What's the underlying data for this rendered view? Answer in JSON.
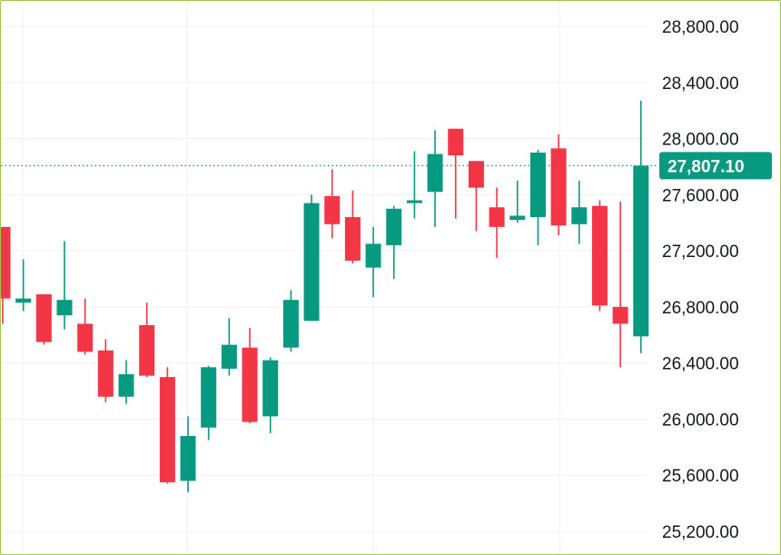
{
  "chart_data": {
    "type": "candlestick",
    "title": "",
    "xlabel": "",
    "ylabel": "",
    "ylim": [
      25050,
      29000
    ],
    "grid": true,
    "colors": {
      "up": "#089981",
      "down": "#f23645",
      "grid": "#eef0f3",
      "line": "#089981"
    },
    "yticks": [
      "28,800.00",
      "28,400.00",
      "28,000.00",
      "27,600.00",
      "27,200.00",
      "26,800.00",
      "26,400.00",
      "26,000.00",
      "25,600.00",
      "25,200.00"
    ],
    "ytick_values": [
      28800,
      28400,
      28000,
      27600,
      27200,
      26800,
      26400,
      26000,
      25600,
      25200
    ],
    "current_price": 27807.1,
    "current_price_label": "27,807.10",
    "candles": [
      {
        "open": 27370,
        "high": 27370,
        "low": 26680,
        "close": 26860
      },
      {
        "open": 26830,
        "high": 27140,
        "low": 26770,
        "close": 26860
      },
      {
        "open": 26890,
        "high": 26890,
        "low": 26530,
        "close": 26550
      },
      {
        "open": 26740,
        "high": 27270,
        "low": 26640,
        "close": 26850
      },
      {
        "open": 26680,
        "high": 26860,
        "low": 26460,
        "close": 26480
      },
      {
        "open": 26490,
        "high": 26570,
        "low": 26120,
        "close": 26160
      },
      {
        "open": 26160,
        "high": 26420,
        "low": 26110,
        "close": 26320
      },
      {
        "open": 26670,
        "high": 26830,
        "low": 26300,
        "close": 26310
      },
      {
        "open": 26300,
        "high": 26370,
        "low": 25540,
        "close": 25550
      },
      {
        "open": 25560,
        "high": 26020,
        "low": 25480,
        "close": 25880
      },
      {
        "open": 25940,
        "high": 26380,
        "low": 25850,
        "close": 26370
      },
      {
        "open": 26360,
        "high": 26720,
        "low": 26310,
        "close": 26530
      },
      {
        "open": 26510,
        "high": 26650,
        "low": 25970,
        "close": 25980
      },
      {
        "open": 26020,
        "high": 26440,
        "low": 25900,
        "close": 26420
      },
      {
        "open": 26510,
        "high": 26920,
        "low": 26480,
        "close": 26850
      },
      {
        "open": 26700,
        "high": 27600,
        "low": 26700,
        "close": 27540
      },
      {
        "open": 27590,
        "high": 27780,
        "low": 27290,
        "close": 27390
      },
      {
        "open": 27440,
        "high": 27630,
        "low": 27110,
        "close": 27130
      },
      {
        "open": 27080,
        "high": 27370,
        "low": 26870,
        "close": 27250
      },
      {
        "open": 27240,
        "high": 27520,
        "low": 27000,
        "close": 27500
      },
      {
        "open": 27540,
        "high": 27910,
        "low": 27430,
        "close": 27560
      },
      {
        "open": 27620,
        "high": 28060,
        "low": 27370,
        "close": 27890
      },
      {
        "open": 28070,
        "high": 28070,
        "low": 27430,
        "close": 27880
      },
      {
        "open": 27840,
        "high": 27840,
        "low": 27340,
        "close": 27650
      },
      {
        "open": 27510,
        "high": 27650,
        "low": 27150,
        "close": 27370
      },
      {
        "open": 27420,
        "high": 27700,
        "low": 27400,
        "close": 27450
      },
      {
        "open": 27440,
        "high": 27920,
        "low": 27240,
        "close": 27900
      },
      {
        "open": 27930,
        "high": 28030,
        "low": 27310,
        "close": 27380
      },
      {
        "open": 27390,
        "high": 27700,
        "low": 27250,
        "close": 27510
      },
      {
        "open": 27520,
        "high": 27560,
        "low": 26770,
        "close": 26810
      },
      {
        "open": 26800,
        "high": 27550,
        "low": 26370,
        "close": 26680
      },
      {
        "open": 26590,
        "high": 28270,
        "low": 26470,
        "close": 27807
      }
    ]
  }
}
